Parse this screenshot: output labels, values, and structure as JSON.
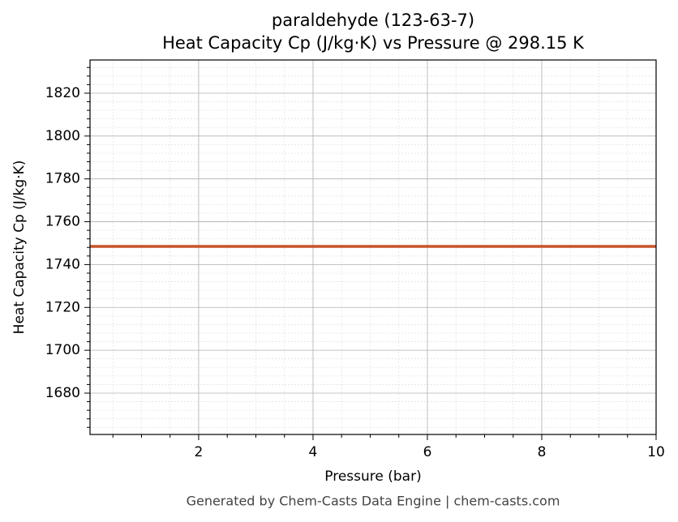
{
  "chart_data": {
    "type": "line",
    "title": "paraldehyde (123-63-7)",
    "subtitle": "Heat Capacity Cp (J/kg·K) vs Pressure @ 298.15 K",
    "x_label": "Pressure (bar)",
    "y_label": "Heat Capacity Cp (J/kg·K)",
    "footer": "Generated by Chem-Casts Data Engine | chem-casts.com",
    "x": [
      0.1,
      10
    ],
    "series": [
      {
        "name": "Cp",
        "color": "#c8532a",
        "values": [
          1748.5,
          1748.5
        ]
      }
    ],
    "xlim": [
      0.1,
      10
    ],
    "xticks": [
      2,
      4,
      6,
      8,
      10
    ],
    "ylim": [
      1660.7,
      1835.5
    ],
    "yticks": [
      1680,
      1700,
      1720,
      1740,
      1760,
      1780,
      1800,
      1820
    ],
    "grid": true,
    "minor_grid": true
  }
}
